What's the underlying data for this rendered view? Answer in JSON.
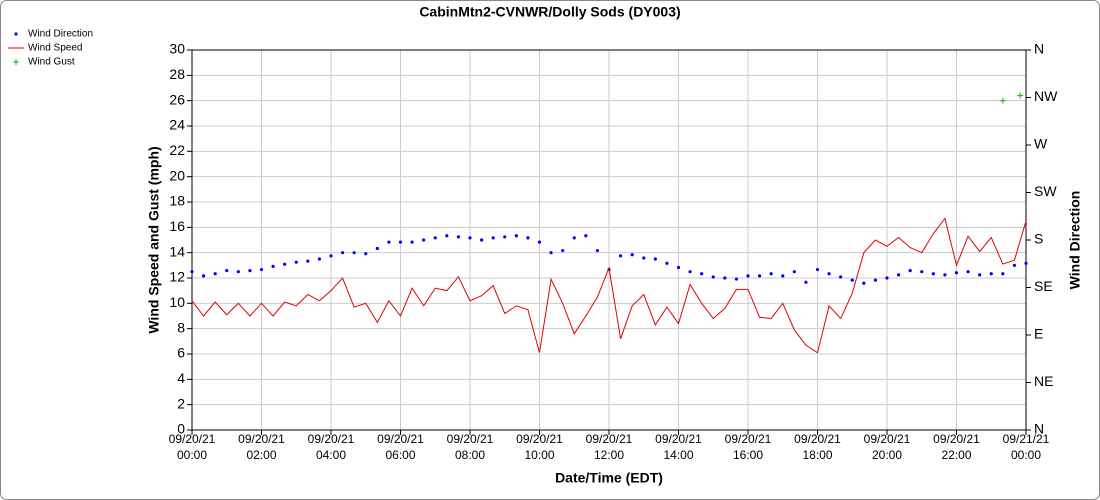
{
  "chart_data": {
    "type": "line",
    "title": "CabinMtn2-CVNWR/Dolly Sods (DY003)",
    "xlabel": "Date/Time (EDT)",
    "ylabel": "Wind Speed and Gust (mph)",
    "y2label": "Wind Direction",
    "x": [
      "09/20/21 00:00",
      "09/20/21 00:20",
      "09/20/21 00:40",
      "09/20/21 01:00",
      "09/20/21 01:20",
      "09/20/21 01:40",
      "09/20/21 02:00",
      "09/20/21 02:20",
      "09/20/21 02:40",
      "09/20/21 03:00",
      "09/20/21 03:20",
      "09/20/21 03:40",
      "09/20/21 04:00",
      "09/20/21 04:20",
      "09/20/21 04:40",
      "09/20/21 05:00",
      "09/20/21 05:20",
      "09/20/21 05:40",
      "09/20/21 06:00",
      "09/20/21 06:20",
      "09/20/21 06:40",
      "09/20/21 07:00",
      "09/20/21 07:20",
      "09/20/21 07:40",
      "09/20/21 08:00",
      "09/20/21 08:20",
      "09/20/21 08:40",
      "09/20/21 09:00",
      "09/20/21 09:20",
      "09/20/21 09:40",
      "09/20/21 10:00",
      "09/20/21 10:20",
      "09/20/21 10:40",
      "09/20/21 11:00",
      "09/20/21 11:20",
      "09/20/21 11:40",
      "09/20/21 12:00",
      "09/20/21 12:20",
      "09/20/21 12:40",
      "09/20/21 13:00",
      "09/20/21 13:20",
      "09/20/21 13:40",
      "09/20/21 14:00",
      "09/20/21 14:20",
      "09/20/21 14:40",
      "09/20/21 15:00",
      "09/20/21 15:20",
      "09/20/21 15:40",
      "09/20/21 16:00",
      "09/20/21 16:20",
      "09/20/21 16:40",
      "09/20/21 17:00",
      "09/20/21 17:20",
      "09/20/21 17:40",
      "09/20/21 18:00",
      "09/20/21 18:20",
      "09/20/21 18:40",
      "09/20/21 19:00",
      "09/20/21 19:20",
      "09/20/21 19:40",
      "09/20/21 20:00",
      "09/20/21 20:20",
      "09/20/21 20:40",
      "09/20/21 21:00",
      "09/20/21 21:20",
      "09/20/21 21:40",
      "09/20/21 22:00",
      "09/20/21 22:20",
      "09/20/21 22:40",
      "09/20/21 23:00",
      "09/20/21 23:20",
      "09/20/21 23:40",
      "09/21/21 00:00"
    ],
    "series": [
      {
        "name": "Wind Direction",
        "color": "#0000ff",
        "mode": "markers",
        "marker": "dot",
        "axis": "y2",
        "values": [
          150,
          146,
          148,
          151,
          150,
          151,
          152,
          155,
          157,
          159,
          160,
          162,
          165,
          168,
          168,
          167,
          172,
          178,
          178,
          178,
          180,
          182,
          184,
          183,
          182,
          180,
          182,
          183,
          184,
          182,
          178,
          168,
          170,
          182,
          184,
          170,
          152,
          165,
          166,
          163,
          162,
          158,
          154,
          150,
          148,
          145,
          144,
          143,
          146,
          146,
          148,
          146,
          150,
          140,
          152,
          148,
          145,
          142,
          139,
          142,
          144,
          147,
          151,
          150,
          148,
          147,
          149,
          150,
          147,
          148,
          148,
          156,
          158
        ]
      },
      {
        "name": "Wind Speed",
        "color": "#e00000",
        "mode": "line",
        "values": [
          10.2,
          9.0,
          10.1,
          9.1,
          10.0,
          9.0,
          10.0,
          9.0,
          10.1,
          9.8,
          10.7,
          10.2,
          11.0,
          12.0,
          9.7,
          10.0,
          8.5,
          10.2,
          9.0,
          11.2,
          9.8,
          11.2,
          11.0,
          12.1,
          10.2,
          10.6,
          11.4,
          9.2,
          9.8,
          9.5,
          6.1,
          11.9,
          10.0,
          7.6,
          9.0,
          10.5,
          12.8,
          7.2,
          9.8,
          10.7,
          8.3,
          9.7,
          8.4,
          11.5,
          10.0,
          8.8,
          9.6,
          11.1,
          11.1,
          8.9,
          8.8,
          10.0,
          7.9,
          6.7,
          6.1,
          9.8,
          8.8,
          10.8,
          14.0,
          15.0,
          14.5,
          15.2,
          14.4,
          14.0,
          15.5,
          16.7,
          13.0,
          15.3,
          14.1,
          15.2,
          13.1,
          13.4,
          16.5
        ]
      },
      {
        "name": "Wind Gust",
        "color": "#00c000",
        "mode": "markers",
        "marker": "plus",
        "x": [
          "09/20/21 23:20",
          "09/20/21 23:50"
        ],
        "values": [
          26.0,
          26.4
        ]
      }
    ],
    "xlim": [
      "09/20/21 00:00",
      "09/21/21 00:00"
    ],
    "xticks": [
      "09/20/21 00:00",
      "09/20/21 02:00",
      "09/20/21 04:00",
      "09/20/21 06:00",
      "09/20/21 08:00",
      "09/20/21 10:00",
      "09/20/21 12:00",
      "09/20/21 14:00",
      "09/20/21 16:00",
      "09/20/21 18:00",
      "09/20/21 20:00",
      "09/20/21 22:00",
      "09/21/21 00:00"
    ],
    "ylim": [
      0,
      30
    ],
    "yticks": [
      0,
      2,
      4,
      6,
      8,
      10,
      12,
      14,
      16,
      18,
      20,
      22,
      24,
      26,
      28,
      30
    ],
    "y2lim": [
      0,
      360
    ],
    "y2ticks": [
      {
        "value": 0,
        "label": "N"
      },
      {
        "value": 45,
        "label": "NE"
      },
      {
        "value": 90,
        "label": "E"
      },
      {
        "value": 135,
        "label": "SE"
      },
      {
        "value": 180,
        "label": "S"
      },
      {
        "value": 225,
        "label": "SW"
      },
      {
        "value": 270,
        "label": "W"
      },
      {
        "value": 315,
        "label": "NW"
      },
      {
        "value": 360,
        "label": "N"
      }
    ],
    "grid": true
  }
}
